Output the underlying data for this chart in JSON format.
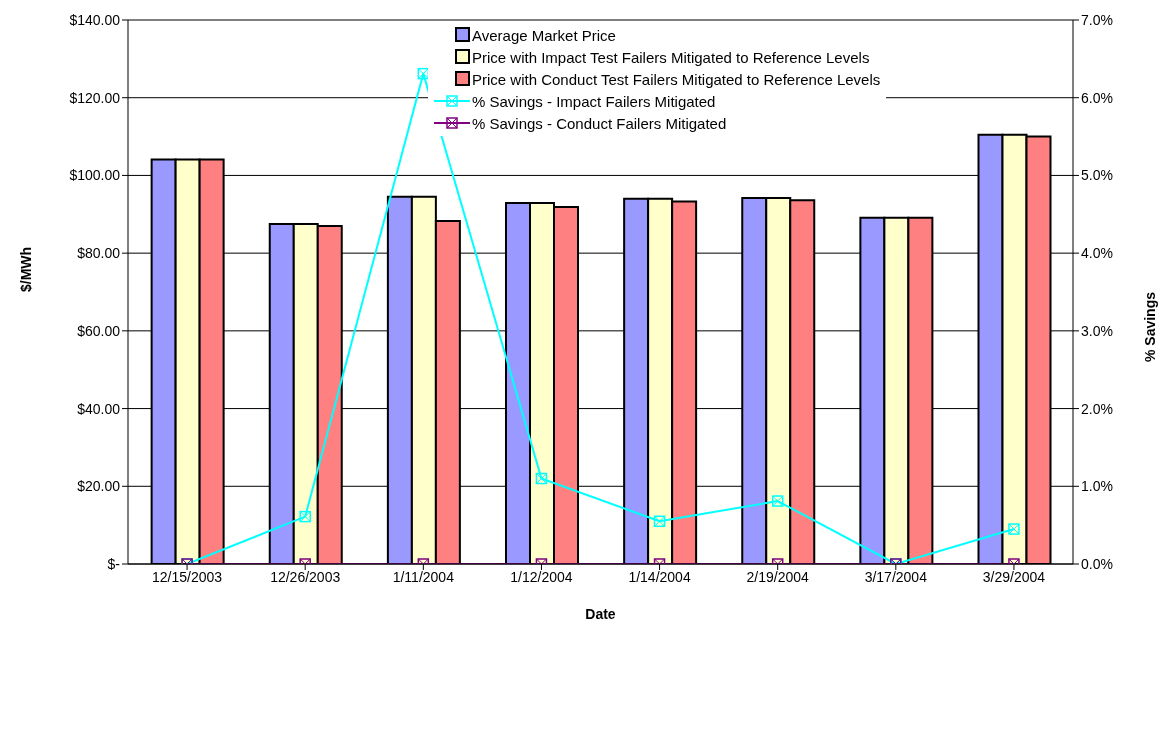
{
  "chart_data": {
    "type": "bar",
    "xlabel": "Date",
    "ylabel": "$/MWh",
    "y2label": "% Savings",
    "categories": [
      "12/15/2003",
      "12/26/2003",
      "1/11/2004",
      "1/12/2004",
      "1/14/2004",
      "2/19/2004",
      "3/17/2004",
      "3/29/2004"
    ],
    "series": [
      {
        "name": "Average Market Price",
        "color": "#9999ff",
        "values": [
          104.1,
          87.5,
          94.5,
          92.9,
          94.0,
          94.2,
          89.1,
          110.5
        ]
      },
      {
        "name": "Price with Impact Test Failers Mitigated to Reference Levels",
        "color": "#ffffcc",
        "values": [
          104.1,
          87.5,
          94.5,
          92.9,
          94.0,
          94.2,
          89.1,
          110.5
        ]
      },
      {
        "name": "Price with Conduct Test Failers Mitigated to Reference Levels",
        "color": "#ff8080",
        "values": [
          104.1,
          87.0,
          88.3,
          91.9,
          93.3,
          93.6,
          89.1,
          110.0
        ]
      },
      {
        "name": "% Savings - Impact Failers Mitigated",
        "type": "line",
        "axis": "y2",
        "color": "#00ffff",
        "values": [
          0,
          0.61,
          6.31,
          1.1,
          0.55,
          0.81,
          0,
          0.45
        ]
      },
      {
        "name": "% Savings - Conduct Failers Mitigated",
        "type": "line",
        "axis": "y2",
        "color": "#800080",
        "values": [
          0,
          0,
          0,
          0,
          0,
          0,
          0,
          0
        ]
      }
    ],
    "ylim": [
      0,
      140
    ],
    "yticks": [
      {
        "value": 0,
        "label": "$-"
      },
      {
        "value": 20,
        "label": "$20.00"
      },
      {
        "value": 40,
        "label": "$40.00"
      },
      {
        "value": 60,
        "label": "$60.00"
      },
      {
        "value": 80,
        "label": "$80.00"
      },
      {
        "value": 100,
        "label": "$100.00"
      },
      {
        "value": 120,
        "label": "$120.00"
      },
      {
        "value": 140,
        "label": "$140.00"
      }
    ],
    "y2lim": [
      0,
      7
    ],
    "y2ticks": [
      {
        "value": 0,
        "label": "0.0%"
      },
      {
        "value": 1,
        "label": "1.0%"
      },
      {
        "value": 2,
        "label": "2.0%"
      },
      {
        "value": 3,
        "label": "3.0%"
      },
      {
        "value": 4,
        "label": "4.0%"
      },
      {
        "value": 5,
        "label": "5.0%"
      },
      {
        "value": 6,
        "label": "6.0%"
      },
      {
        "value": 7,
        "label": "7.0%"
      }
    ],
    "grid": "y",
    "legend": "top",
    "marker": "square",
    "line_style": "solid"
  }
}
